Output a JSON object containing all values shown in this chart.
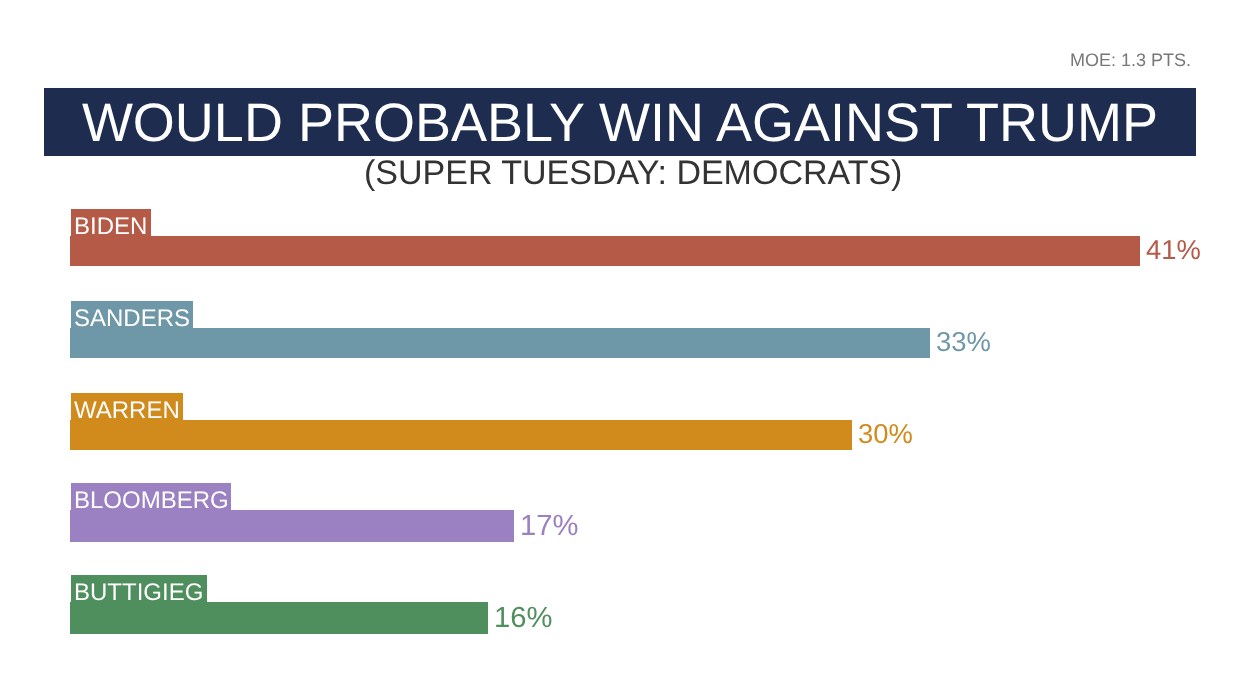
{
  "chart_data": {
    "type": "bar",
    "orientation": "horizontal",
    "title": "WOULD PROBABLY WIN AGAINST TRUMP",
    "subtitle": "(SUPER TUESDAY: DEMOCRATS)",
    "annotations": [
      "MOE: 1.3 PTS."
    ],
    "categories": [
      "BIDEN",
      "SANDERS",
      "WARREN",
      "BLOOMBERG",
      "BUTTIGIEG"
    ],
    "values": [
      41,
      33,
      30,
      17,
      16
    ],
    "value_labels": [
      "41%",
      "33%",
      "30%",
      "17%",
      "16%"
    ],
    "colors": [
      "#b65a48",
      "#6e97a8",
      "#d18a1c",
      "#9b80c2",
      "#4f8e5d"
    ],
    "legend": false
  }
}
